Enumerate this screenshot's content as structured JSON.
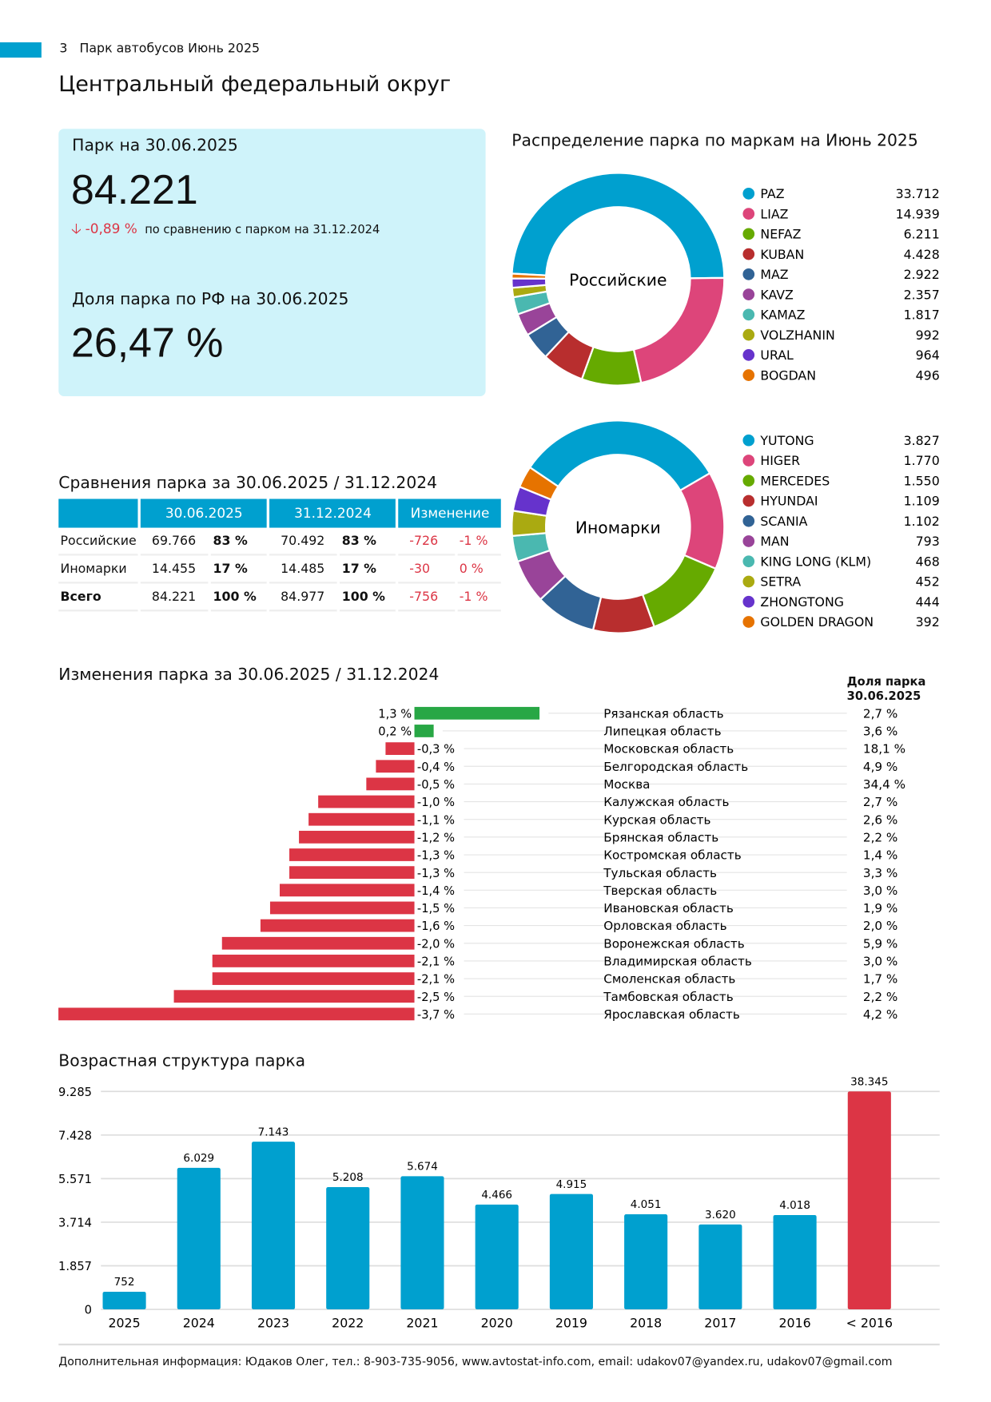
{
  "header": {
    "page_number": "3",
    "report_title": "Парк автобусов Июнь 2025",
    "section_title": "Центральный федеральный округ"
  },
  "summary": {
    "fleet_label": "Парк на 30.06.2025",
    "fleet_value": "84.221",
    "change_value": "-0,89 %",
    "change_text": "по сравнению с парком на 31.12.2024",
    "share_label": "Доля парка по РФ на 30.06.2025",
    "share_value": "26,47 %"
  },
  "comparison": {
    "title": "Сравнения парка за 30.06.2025 / 31.12.2024",
    "headers": [
      "",
      "30.06.2025",
      "31.12.2024",
      "Изменение"
    ],
    "rows": [
      {
        "label": "Российские",
        "v1": "69.766",
        "p1": "83 %",
        "v2": "70.492",
        "p2": "83 %",
        "dv": "-726",
        "dp": "-1 %"
      },
      {
        "label": "Иномарки",
        "v1": "14.455",
        "p1": "17 %",
        "v2": "14.485",
        "p2": "17 %",
        "dv": "-30",
        "dp": "0 %"
      },
      {
        "label": "Всего",
        "v1": "84.221",
        "p1": "100 %",
        "v2": "84.977",
        "p2": "100 %",
        "dv": "-756",
        "dp": "-1 %"
      }
    ]
  },
  "chart_data": [
    {
      "type": "pie",
      "variant": "donut",
      "title": "Распределение парка по маркам на Июнь 2025",
      "center_label": "Российские",
      "labels": [
        "PAZ",
        "LIAZ",
        "NEFAZ",
        "KUBAN",
        "MAZ",
        "KAVZ",
        "KAMAZ",
        "VOLZHANIN",
        "URAL",
        "BOGDAN"
      ],
      "values": [
        33712,
        14939,
        6211,
        4428,
        2922,
        2357,
        1817,
        992,
        964,
        496
      ],
      "value_labels": [
        "33.712",
        "14.939",
        "6.211",
        "4.428",
        "2.922",
        "2.357",
        "1.817",
        "992",
        "964",
        "496"
      ],
      "colors": [
        "#00a0cf",
        "#dd457a",
        "#66aa00",
        "#b82e2e",
        "#316395",
        "#994499",
        "#4ab8b0",
        "#aaaa11",
        "#6633cc",
        "#e67300"
      ],
      "legend": "right"
    },
    {
      "type": "pie",
      "variant": "donut",
      "center_label": "Иномарки",
      "labels": [
        "YUTONG",
        "HIGER",
        "MERCEDES",
        "HYUNDAI",
        "SCANIA",
        "MAN",
        "KING LONG (KLM)",
        "SETRA",
        "ZHONGTONG",
        "GOLDEN DRAGON"
      ],
      "values": [
        3827,
        1770,
        1550,
        1109,
        1102,
        793,
        468,
        452,
        444,
        392
      ],
      "value_labels": [
        "3.827",
        "1.770",
        "1.550",
        "1.109",
        "1.102",
        "793",
        "468",
        "452",
        "444",
        "392"
      ],
      "colors": [
        "#00a0cf",
        "#dd457a",
        "#66aa00",
        "#b82e2e",
        "#316395",
        "#994499",
        "#4ab8b0",
        "#aaaa11",
        "#6633cc",
        "#e67300"
      ],
      "legend": "right"
    },
    {
      "type": "bar",
      "orientation": "horizontal",
      "title": "Изменения парка за 30.06.2025 / 31.12.2024",
      "share_header": [
        "Доля парка",
        "30.06.2025"
      ],
      "categories": [
        "Рязанская область",
        "Липецкая область",
        "Московская область",
        "Белгородская область",
        "Москва",
        "Калужская область",
        "Курская область",
        "Брянская область",
        "Костромская область",
        "Тульская область",
        "Тверская область",
        "Ивановская область",
        "Орловская область",
        "Воронежская область",
        "Владимирская область",
        "Смоленская область",
        "Тамбовская область",
        "Ярославская область"
      ],
      "values": [
        1.3,
        0.2,
        -0.3,
        -0.4,
        -0.5,
        -1.0,
        -1.1,
        -1.2,
        -1.3,
        -1.3,
        -1.4,
        -1.5,
        -1.6,
        -2.0,
        -2.1,
        -2.1,
        -2.5,
        -3.7
      ],
      "value_labels": [
        "1,3 %",
        "0,2 %",
        "-0,3 %",
        "-0,4 %",
        "-0,5 %",
        "-1,0 %",
        "-1,1 %",
        "-1,2 %",
        "-1,3 %",
        "-1,3 %",
        "-1,4 %",
        "-1,5 %",
        "-1,6 %",
        "-2,0 %",
        "-2,1 %",
        "-2,1 %",
        "-2,5 %",
        "-3,7 %"
      ],
      "shares": [
        "2,7 %",
        "3,6 %",
        "18,1 %",
        "4,9 %",
        "34,4 %",
        "2,7 %",
        "2,6 %",
        "2,2 %",
        "1,4 %",
        "3,3 %",
        "3,0 %",
        "1,9 %",
        "2,0 %",
        "5,9 %",
        "3,0 %",
        "1,7 %",
        "2,2 %",
        "4,2 %"
      ],
      "positive_color": "#28a745",
      "negative_color": "#dc3545"
    },
    {
      "type": "bar",
      "title": "Возрастная структура парка",
      "categories": [
        "2025",
        "2024",
        "2023",
        "2022",
        "2021",
        "2020",
        "2019",
        "2018",
        "2017",
        "2016",
        "< 2016"
      ],
      "values": [
        752,
        6029,
        7143,
        5208,
        5674,
        4466,
        4915,
        4051,
        3620,
        4018,
        38345
      ],
      "value_labels": [
        "752",
        "6.029",
        "7.143",
        "5.208",
        "5.674",
        "4.466",
        "4.915",
        "4.051",
        "3.620",
        "4.018",
        "38.345"
      ],
      "yticks": [
        "0",
        "1.857",
        "3.714",
        "5.571",
        "7.428",
        "9.285"
      ],
      "ylim": [
        0,
        9285
      ],
      "grid": true,
      "colors": [
        "#00a0cf",
        "#00a0cf",
        "#00a0cf",
        "#00a0cf",
        "#00a0cf",
        "#00a0cf",
        "#00a0cf",
        "#00a0cf",
        "#00a0cf",
        "#00a0cf",
        "#dc3545"
      ]
    }
  ],
  "footer": "Дополнительная информация: Юдаков Олег, тел.: 8-903-735-9056, www.avtostat-info.com, email: udakov07@yandex.ru, udakov07@gmail.com"
}
